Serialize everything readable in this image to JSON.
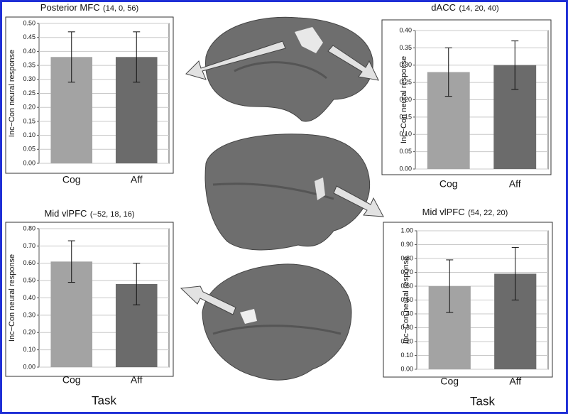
{
  "chart_data": [
    {
      "type": "bar",
      "title": "Posterior MFC",
      "subtitle": "(14, 0, 56)",
      "ylabel": "Inc−Con neural response",
      "categories": [
        "Cog",
        "Aff"
      ],
      "values": [
        0.38,
        0.38
      ],
      "errors": [
        0.09,
        0.09
      ],
      "colors": [
        "#a3a3a3",
        "#6b6b6b"
      ],
      "ylim": [
        0,
        0.5
      ],
      "yticks": [
        {
          "value": 0,
          "label": "0.00"
        },
        {
          "value": 0.05,
          "label": "0.05"
        },
        {
          "value": 0.1,
          "label": "0.10"
        },
        {
          "value": 0.15,
          "label": "0.15"
        },
        {
          "value": 0.2,
          "label": "0.20"
        },
        {
          "value": 0.25,
          "label": "0.25"
        },
        {
          "value": 0.3,
          "label": "0.30"
        },
        {
          "value": 0.35,
          "label": "0.35"
        },
        {
          "value": 0.4,
          "label": "0.40"
        },
        {
          "value": 0.45,
          "label": "0.45"
        },
        {
          "value": 0.5,
          "label": "0.50"
        }
      ],
      "grid": true
    },
    {
      "type": "bar",
      "title": "dACC",
      "subtitle": "(14, 20, 40)",
      "ylabel": "Inc−Con neural response",
      "categories": [
        "Cog",
        "Aff"
      ],
      "values": [
        0.28,
        0.3
      ],
      "errors": [
        0.07,
        0.07
      ],
      "colors": [
        "#a3a3a3",
        "#6b6b6b"
      ],
      "ylim": [
        0,
        0.4
      ],
      "yticks": [
        {
          "value": 0,
          "label": "0.00"
        },
        {
          "value": 0.05,
          "label": "0.05"
        },
        {
          "value": 0.1,
          "label": "0.10"
        },
        {
          "value": 0.15,
          "label": "0.15"
        },
        {
          "value": 0.2,
          "label": "0.20"
        },
        {
          "value": 0.25,
          "label": "0.25"
        },
        {
          "value": 0.3,
          "label": "0.30"
        },
        {
          "value": 0.35,
          "label": "0.35"
        },
        {
          "value": 0.4,
          "label": "0.40"
        }
      ],
      "grid": true
    },
    {
      "type": "bar",
      "title": "Mid vlPFC",
      "subtitle": "(−52, 18, 16)",
      "ylabel": "Inc−Con neural response",
      "xlabel": "Task",
      "categories": [
        "Cog",
        "Aff"
      ],
      "values": [
        0.61,
        0.48
      ],
      "errors": [
        0.12,
        0.12
      ],
      "colors": [
        "#a3a3a3",
        "#6b6b6b"
      ],
      "ylim": [
        0,
        0.8
      ],
      "yticks": [
        {
          "value": 0,
          "label": "0.00"
        },
        {
          "value": 0.1,
          "label": "0.10"
        },
        {
          "value": 0.2,
          "label": "0.20"
        },
        {
          "value": 0.3,
          "label": "0.30"
        },
        {
          "value": 0.4,
          "label": "0.40"
        },
        {
          "value": 0.5,
          "label": "0.50"
        },
        {
          "value": 0.6,
          "label": "0.60"
        },
        {
          "value": 0.7,
          "label": "0.70"
        },
        {
          "value": 0.8,
          "label": "0.80"
        }
      ],
      "grid": true
    },
    {
      "type": "bar",
      "title": "Mid vlPFC",
      "subtitle": "(54, 22, 20)",
      "ylabel": "Inc−Con neural response",
      "xlabel": "Task",
      "categories": [
        "Cog",
        "Aff"
      ],
      "values": [
        0.6,
        0.69
      ],
      "errors": [
        0.19,
        0.19
      ],
      "colors": [
        "#a3a3a3",
        "#6b6b6b"
      ],
      "ylim": [
        0,
        1
      ],
      "yticks": [
        {
          "value": 0,
          "label": "0.00"
        },
        {
          "value": 0.1,
          "label": "0.10"
        },
        {
          "value": 0.2,
          "label": "0.20"
        },
        {
          "value": 0.3,
          "label": "0.30"
        },
        {
          "value": 0.4,
          "label": "0.40"
        },
        {
          "value": 0.5,
          "label": "0.50"
        },
        {
          "value": 0.6,
          "label": "0.60"
        },
        {
          "value": 0.7,
          "label": "0.70"
        },
        {
          "value": 0.8,
          "label": "0.80"
        },
        {
          "value": 0.9,
          "label": "0.90"
        },
        {
          "value": 1,
          "label": "1.00"
        }
      ],
      "grid": true
    }
  ]
}
